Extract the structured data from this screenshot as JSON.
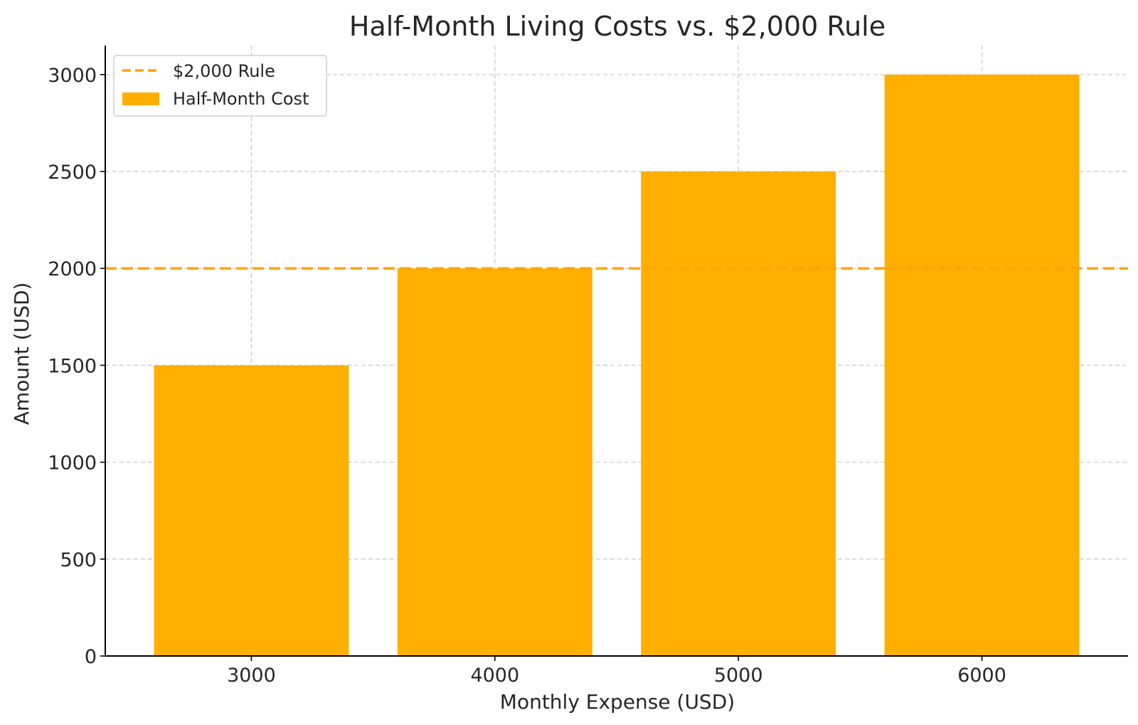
{
  "chart_data": {
    "type": "bar",
    "title": "Half-Month Living Costs vs. $2,000 Rule",
    "xlabel": "Monthly Expense (USD)",
    "ylabel": "Amount (USD)",
    "categories": [
      "3000",
      "4000",
      "5000",
      "6000"
    ],
    "x": [
      3000,
      4000,
      5000,
      6000
    ],
    "bar_width": 800,
    "series": [
      {
        "name": "Half-Month Cost",
        "values": [
          1500,
          2000,
          2500,
          3000
        ],
        "color": "#FFAF00"
      }
    ],
    "reference_lines": [
      {
        "name": "$2,000 Rule",
        "y": 2000,
        "style": "dashed",
        "color": "#FFA500"
      }
    ],
    "xlim": [
      2400,
      6600
    ],
    "ylim": [
      0,
      3150
    ],
    "yticks": [
      0,
      500,
      1000,
      1500,
      2000,
      2500,
      3000
    ],
    "xticks": [
      3000,
      4000,
      5000,
      6000
    ],
    "grid": true,
    "legend": {
      "position": "top-left",
      "entries": [
        {
          "label": "$2,000 Rule",
          "kind": "line"
        },
        {
          "label": "Half-Month Cost",
          "kind": "patch"
        }
      ]
    }
  }
}
